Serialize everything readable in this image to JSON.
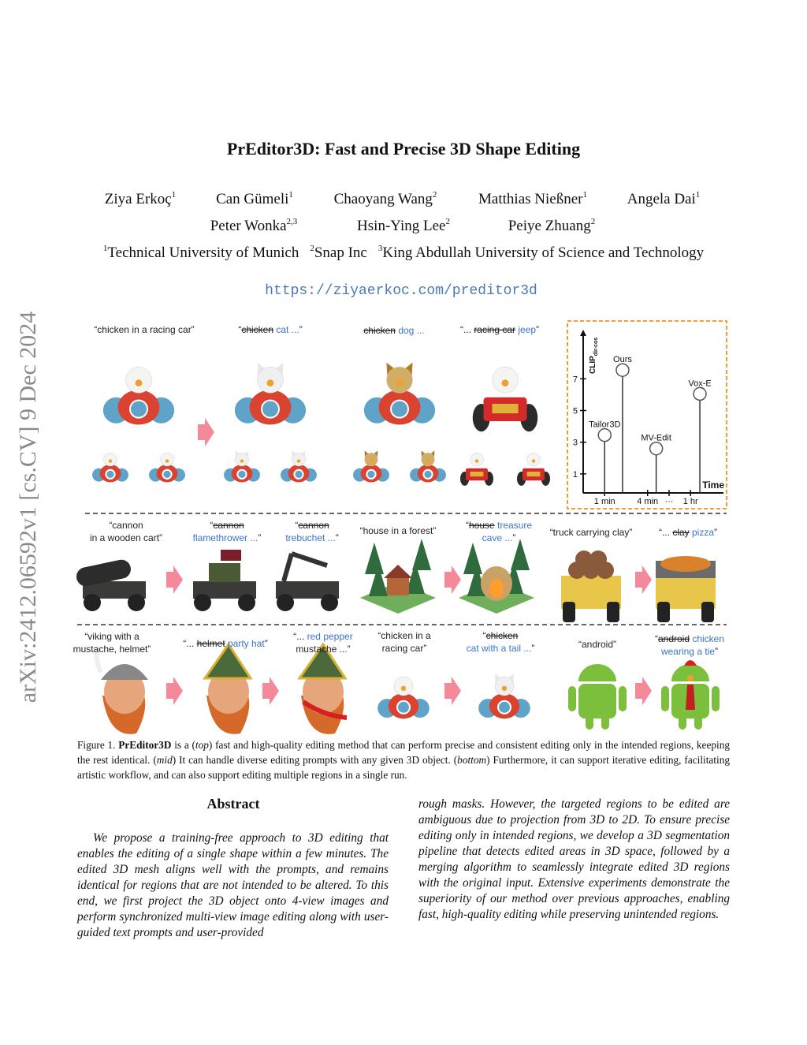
{
  "side_stamp": "arXiv:2412.06592v1  [cs.CV]  9 Dec 2024",
  "title": "PrEditor3D: Fast and Precise 3D Shape Editing",
  "authors": [
    {
      "name": "Ziya Erkoç",
      "affil": "1"
    },
    {
      "name": "Can Gümeli",
      "affil": "1"
    },
    {
      "name": "Chaoyang Wang",
      "affil": "2"
    },
    {
      "name": "Matthias Nießner",
      "affil": "1"
    },
    {
      "name": "Angela Dai",
      "affil": "1"
    },
    {
      "name": "Peter Wonka",
      "affil": "2,3"
    },
    {
      "name": "Hsin-Ying Lee",
      "affil": "2"
    },
    {
      "name": "Peiye Zhuang",
      "affil": "2"
    }
  ],
  "affiliations": [
    {
      "mark": "1",
      "name": "Technical University of Munich"
    },
    {
      "mark": "2",
      "name": "Snap Inc"
    },
    {
      "mark": "3",
      "name": "King Abdullah University of Science and Technology"
    }
  ],
  "url": "https://ziyaerkoc.com/preditor3d",
  "figure": {
    "prompts": [
      [
        [
          "“chicken in a racing car”"
        ]
      ],
      [
        [
          "“",
          {
            "text": "chicken",
            "strike": true
          },
          {
            "text": " cat ...",
            "color": "#3b74c9"
          },
          "”"
        ]
      ],
      [
        [
          {
            "text": "chicken",
            "strike": true
          },
          {
            "text": " dog ...",
            "color": "#3b74c9"
          }
        ]
      ],
      [
        [
          "“... ",
          {
            "text": "racing car",
            "strike": true
          },
          {
            "text": " jeep",
            "color": "#3b74c9"
          },
          "”"
        ]
      ],
      [
        [
          "“cannon"
        ],
        [
          "in a wooden cart”"
        ]
      ],
      [
        [
          "“",
          {
            "text": "cannon",
            "strike": true
          }
        ],
        [
          {
            "text": "flamethrower ...",
            "color": "#3b74c9"
          },
          "”"
        ]
      ],
      [
        [
          "“",
          {
            "text": "cannon",
            "strike": true
          }
        ],
        [
          {
            "text": "trebuchet ...",
            "color": "#3b74c9"
          },
          "”"
        ]
      ],
      [
        [
          "“house in a forest”"
        ]
      ],
      [
        [
          "“",
          {
            "text": "house",
            "strike": true
          },
          {
            "text": " treasure",
            "color": "#3b74c9"
          }
        ],
        [
          {
            "text": "cave ...",
            "color": "#3b74c9"
          },
          "”"
        ]
      ],
      [
        [
          "“truck carrying clay”"
        ]
      ],
      [
        [
          "“... ",
          {
            "text": "clay",
            "strike": true
          },
          {
            "text": " pizza",
            "color": "#3b74c9"
          },
          "”"
        ]
      ],
      [
        [
          "“viking with a"
        ],
        [
          "mustache, helmet”"
        ]
      ],
      [
        [
          "“... ",
          {
            "text": "helmet",
            "strike": true
          },
          {
            "text": " party hat",
            "color": "#3b74c9"
          },
          "”"
        ]
      ],
      [
        [
          "“... ",
          {
            "text": "red pepper",
            "color": "#3b74c9"
          }
        ],
        [
          "mustache ...”"
        ]
      ],
      [
        [
          "“chicken in a"
        ],
        [
          "racing car”"
        ]
      ],
      [
        [
          "“",
          {
            "text": "chicken",
            "strike": true
          }
        ],
        [
          {
            "text": "cat with a tail ...",
            "color": "#3b74c9"
          },
          "”"
        ]
      ],
      [
        [
          "“android”"
        ]
      ],
      [
        [
          "“",
          {
            "text": "android",
            "strike": true
          },
          {
            "text": " chicken",
            "color": "#3b74c9"
          }
        ],
        [
          {
            "text": "wearing a tie",
            "color": "#3b74c9"
          },
          "”"
        ]
      ]
    ],
    "caption": [
      "Figure 1. ",
      {
        "text": "PrEditor3D",
        "bold": true
      },
      " is a (",
      {
        "text": "top",
        "italic": true
      },
      ") fast and high-quality editing method that can perform precise and consistent editing only in the intended regions, keeping the rest identical. (",
      {
        "text": "mid",
        "italic": true
      },
      ") It can handle diverse editing prompts with any given 3D object. (",
      {
        "text": "bottom",
        "italic": true
      },
      ") Furthermore, it can support iterative editing, facilitating artistic workflow, and can also support editing multiple regions in a single run."
    ]
  },
  "abstract": {
    "heading": "Abstract",
    "columns": [
      "We propose a training-free approach to 3D editing that enables the editing of a single shape within a few minutes. The edited 3D mesh aligns well with the prompts, and remains identical for regions that are not intended to be altered. To this end, we first project the 3D object onto 4-view images and perform synchronized multi-view image editing along with user-guided text prompts and user-provided",
      "rough masks. However, the targeted regions to be edited are ambiguous due to projection from 3D to 2D. To ensure precise editing only in intended regions, we develop a 3D segmentation pipeline that detects edited areas in 3D space, followed by a merging algorithm to seamlessly integrate edited 3D regions with the original input. Extensive experiments demonstrate the superiority of our method over previous approaches, enabling fast, high-quality editing while preserving unintended regions."
    ]
  },
  "chart_data": {
    "type": "lollipop",
    "x_label": "Time",
    "y_label": "CLIP",
    "y_label_sub": "dir-cos",
    "labels": [
      "Tailor3D",
      "Ours",
      "MV-Edit",
      "Vox-E"
    ],
    "x": [
      1,
      2.25,
      4.6,
      7.65
    ],
    "values": [
      3.45,
      7.55,
      2.6,
      6.05
    ],
    "color": "#555555",
    "frame_color": "#f0a030",
    "xlim": [
      -0.5,
      9.3
    ],
    "ylim": [
      -0.2,
      10
    ],
    "xticks": [
      {
        "value": 1,
        "label": "1 min"
      },
      {
        "value": 4,
        "label": "4 min"
      },
      {
        "value": 5.5,
        "label": "···"
      },
      {
        "value": 7,
        "label": "1 hr"
      }
    ],
    "yticks": [
      1,
      3,
      5,
      7
    ]
  }
}
